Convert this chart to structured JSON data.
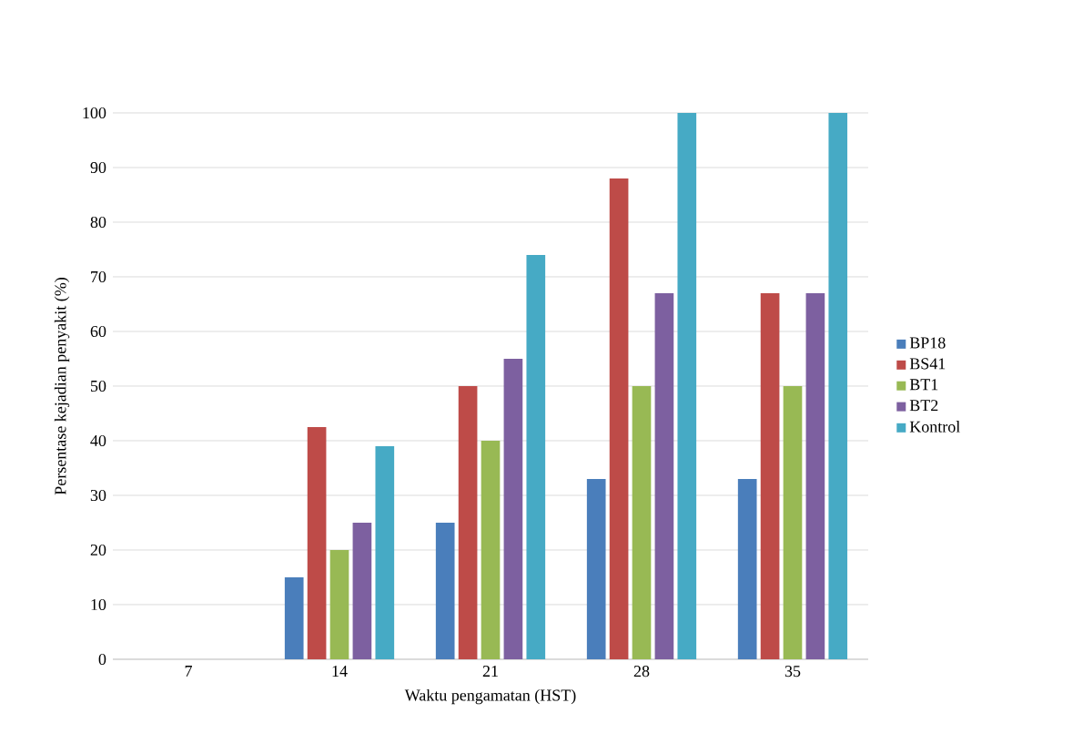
{
  "chart_data": {
    "type": "bar",
    "xlabel": "Waktu pengamatan (HST)",
    "ylabel": "Persentase kejadian penyakit (%)",
    "categories": [
      "7",
      "14",
      "21",
      "28",
      "35"
    ],
    "series": [
      {
        "name": "BP18",
        "color": "#4a7ebb",
        "values": [
          0,
          15,
          25,
          33,
          33
        ]
      },
      {
        "name": "BS41",
        "color": "#be4b48",
        "values": [
          0,
          42.5,
          50,
          88,
          67
        ]
      },
      {
        "name": "BT1",
        "color": "#98b954",
        "values": [
          0,
          20,
          40,
          50,
          50
        ]
      },
      {
        "name": "BT2",
        "color": "#7d60a0",
        "values": [
          0,
          25,
          55,
          67,
          67
        ]
      },
      {
        "name": "Kontrol",
        "color": "#46aac5",
        "values": [
          0,
          39,
          74,
          100,
          100
        ]
      }
    ],
    "ylim": [
      0,
      100
    ],
    "yticks": [
      0,
      10,
      20,
      30,
      40,
      50,
      60,
      70,
      80,
      90,
      100
    ],
    "grid": "y",
    "legend": "right"
  }
}
